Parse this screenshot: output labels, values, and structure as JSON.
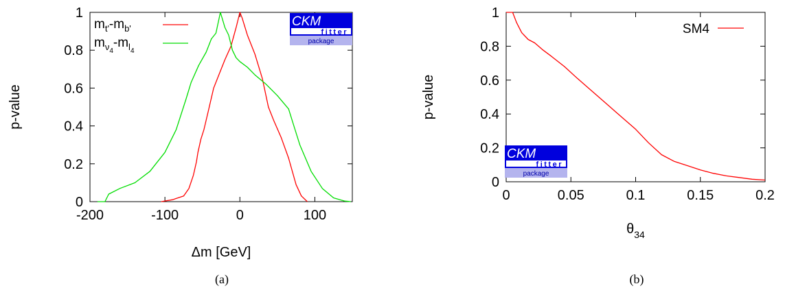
{
  "chart_data": [
    {
      "type": "line",
      "panel_label": "(a)",
      "xlabel": "Δm [GeV]",
      "ylabel": "p-value",
      "xlim": [
        -200,
        150
      ],
      "ylim": [
        0,
        1
      ],
      "xticks": [
        -200,
        -100,
        0,
        100
      ],
      "xtick_labels": [
        "-200",
        "-100",
        "0",
        "100"
      ],
      "yticks": [
        0,
        0.2,
        0.4,
        0.6,
        0.8,
        1
      ],
      "ytick_labels": [
        "0",
        "0.2",
        "0.4",
        "0.6",
        "0.8",
        "1"
      ],
      "legend_position": "top-left",
      "grid": false,
      "logo": {
        "line1": "CKM",
        "line2": "fitter",
        "line3": "package",
        "position": "top-right"
      },
      "series": [
        {
          "name": "mt'-mb'",
          "legend": {
            "main1": "m",
            "sub1": "t'",
            "mid": "-m",
            "sub2": "b'"
          },
          "color": "#ff0000",
          "x": [
            -105,
            -90,
            -75,
            -68,
            -62,
            -58,
            -56,
            -52,
            -48,
            -42,
            -35,
            -28,
            -20,
            -12,
            -5,
            0,
            3,
            10,
            20,
            30,
            38,
            45,
            55,
            65,
            75,
            82,
            90
          ],
          "y": [
            0,
            0.01,
            0.03,
            0.07,
            0.14,
            0.21,
            0.26,
            0.33,
            0.38,
            0.48,
            0.6,
            0.67,
            0.75,
            0.82,
            0.92,
            1.0,
            0.97,
            0.88,
            0.78,
            0.65,
            0.5,
            0.43,
            0.34,
            0.23,
            0.09,
            0.03,
            0
          ]
        },
        {
          "name": "mν4-ml4",
          "legend": {
            "main1": "m",
            "sub1": "ν",
            "subsub1": "4",
            "mid": "-m",
            "sub2": "l",
            "subsub2": "4"
          },
          "color": "#00dd00",
          "x": [
            -190,
            -180,
            -175,
            -160,
            -140,
            -120,
            -100,
            -85,
            -72,
            -65,
            -55,
            -45,
            -38,
            -32,
            -26,
            -20,
            -15,
            -10,
            -5,
            0,
            10,
            20,
            35,
            50,
            65,
            72,
            80,
            95,
            110,
            125,
            140,
            148
          ],
          "y": [
            0,
            0,
            0.04,
            0.07,
            0.1,
            0.16,
            0.26,
            0.38,
            0.54,
            0.63,
            0.72,
            0.79,
            0.86,
            0.89,
            1.0,
            0.92,
            0.88,
            0.8,
            0.76,
            0.74,
            0.71,
            0.67,
            0.62,
            0.56,
            0.49,
            0.4,
            0.3,
            0.16,
            0.07,
            0.02,
            0.003,
            0
          ]
        }
      ]
    },
    {
      "type": "line",
      "panel_label": "(b)",
      "xlabel": "θ34",
      "xlabel_parts": {
        "main": "θ",
        "sub": "34"
      },
      "ylabel": "p-value",
      "xlim": [
        0,
        0.2
      ],
      "ylim": [
        0,
        1
      ],
      "xticks": [
        0,
        0.05,
        0.1,
        0.15,
        0.2
      ],
      "xtick_labels": [
        "0",
        "0.05",
        "0.1",
        "0.15",
        "0.2"
      ],
      "yticks": [
        0,
        0.2,
        0.4,
        0.6,
        0.8,
        1
      ],
      "ytick_labels": [
        "0",
        "0.2",
        "0.4",
        "0.6",
        "0.8",
        "1"
      ],
      "legend_position": "top-right",
      "grid": false,
      "logo": {
        "line1": "CKM",
        "line2": "fitter",
        "line3": "package",
        "position": "bottom-left"
      },
      "series": [
        {
          "name": "SM4",
          "color": "#ff0000",
          "x": [
            0.0,
            0.005,
            0.008,
            0.012,
            0.017,
            0.022,
            0.028,
            0.035,
            0.045,
            0.055,
            0.07,
            0.085,
            0.1,
            0.11,
            0.12,
            0.13,
            0.14,
            0.15,
            0.16,
            0.17,
            0.18,
            0.19,
            0.2
          ],
          "y": [
            1.0,
            1.0,
            0.94,
            0.88,
            0.84,
            0.82,
            0.78,
            0.74,
            0.68,
            0.61,
            0.51,
            0.41,
            0.31,
            0.23,
            0.16,
            0.12,
            0.095,
            0.07,
            0.05,
            0.035,
            0.025,
            0.015,
            0.01
          ]
        }
      ]
    }
  ]
}
